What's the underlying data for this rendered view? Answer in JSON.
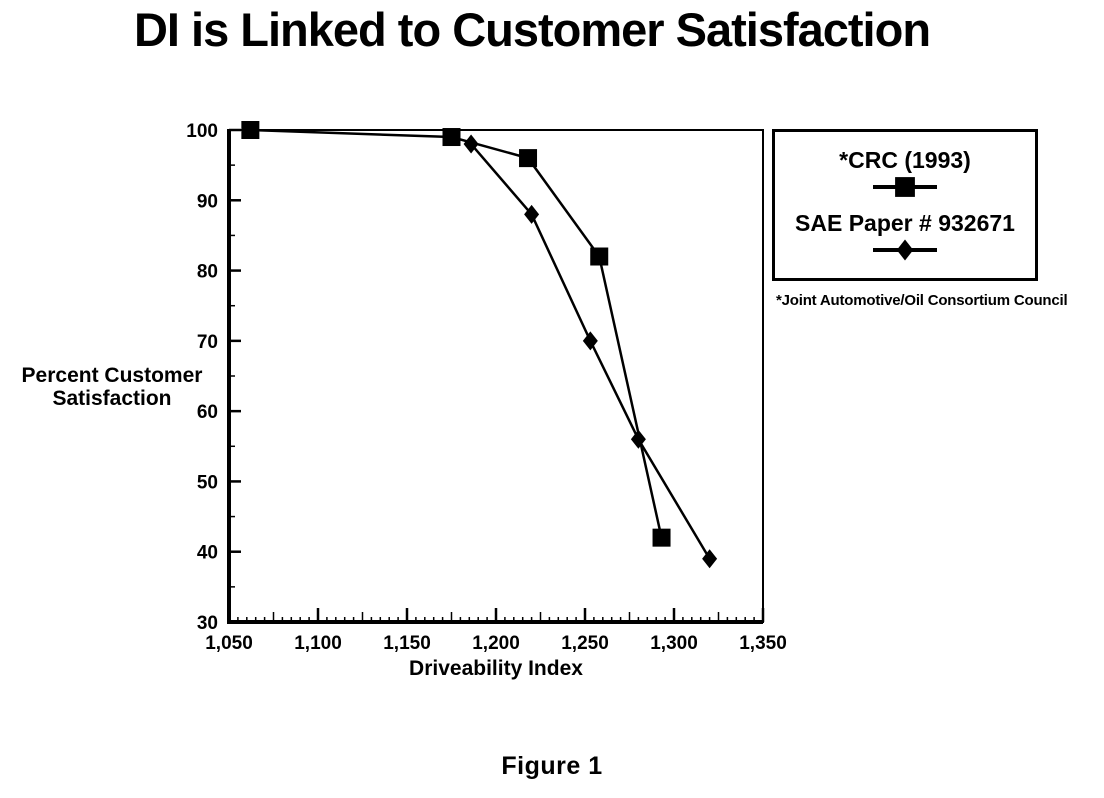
{
  "page": {
    "title": "DI is Linked to Customer Satisfaction",
    "figure_caption": "Figure 1",
    "legend_footnote": "*Joint Automotive/Oil Consortium Council"
  },
  "chart_data": {
    "type": "line",
    "title": "DI is Linked to Customer Satisfaction",
    "xlabel": "Driveability Index",
    "ylabel": "Percent Customer Satisfaction",
    "ylabel_lines": [
      "Percent Customer",
      "Satisfaction"
    ],
    "xlim": [
      1050,
      1350
    ],
    "ylim": [
      30,
      100
    ],
    "x_ticks": [
      1050,
      1100,
      1150,
      1200,
      1250,
      1300,
      1350
    ],
    "x_tick_labels": [
      "1,050",
      "1,100",
      "1,150",
      "1,200",
      "1,250",
      "1,300",
      "1,350"
    ],
    "y_ticks": [
      30,
      40,
      50,
      60,
      70,
      80,
      90,
      100
    ],
    "y_tick_labels": [
      "30",
      "40",
      "50",
      "60",
      "70",
      "80",
      "90",
      "100"
    ],
    "x_minor_step": 5,
    "x_medium_step": 25,
    "y_minor_step": 5,
    "grid": false,
    "legend_position": "outside-right",
    "series": [
      {
        "name": "*CRC (1993)",
        "marker": "square",
        "color": "#000000",
        "points": [
          [
            1062,
            100
          ],
          [
            1175,
            99
          ],
          [
            1218,
            96
          ],
          [
            1258,
            82
          ],
          [
            1293,
            42
          ]
        ]
      },
      {
        "name": "SAE Paper # 932671",
        "marker": "diamond",
        "color": "#000000",
        "points": [
          [
            1186,
            98
          ],
          [
            1220,
            88
          ],
          [
            1253,
            70
          ],
          [
            1280,
            56
          ],
          [
            1320,
            39
          ]
        ]
      }
    ],
    "colors": {
      "ink": "#000000",
      "background": "#ffffff"
    }
  }
}
